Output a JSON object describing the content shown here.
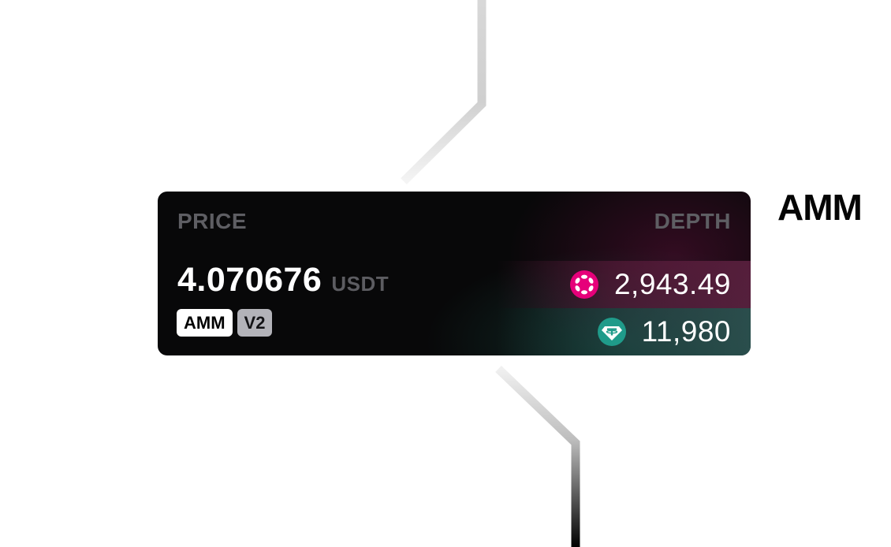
{
  "side_title": "AMM",
  "card": {
    "price_label": "PRICE",
    "depth_label": "DEPTH",
    "price_value": "4.070676",
    "price_unit": "USDT",
    "badges": [
      "AMM",
      "V2"
    ],
    "depth": [
      {
        "icon": "polkadot-icon",
        "value": "2,943.49",
        "color": "#e6007a"
      },
      {
        "icon": "tether-icon",
        "value": "11,980",
        "color": "#26a17b"
      }
    ]
  }
}
